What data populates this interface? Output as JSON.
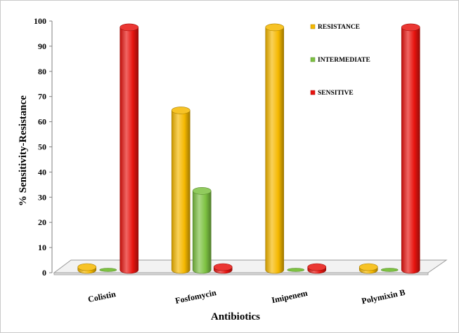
{
  "chart_data": {
    "type": "bar",
    "style": "3d-cylinder",
    "title": "",
    "xlabel": "Antibiotics",
    "ylabel": "% Sensitivity-Resistance",
    "ylim": [
      0,
      100
    ],
    "yticks": [
      0,
      10,
      20,
      30,
      40,
      50,
      60,
      70,
      80,
      90,
      100
    ],
    "categories": [
      "Colistin",
      "Fosfomycin",
      "Imipenem",
      "Polymixin B"
    ],
    "series": [
      {
        "name": "RESISTANCE",
        "color": "#f5b800",
        "values": [
          1.5,
          64.5,
          97.5,
          1.5
        ]
      },
      {
        "name": "INTERMEDIATE",
        "color": "#7dc242",
        "values": [
          0,
          32.5,
          0,
          0
        ]
      },
      {
        "name": "SENSITIVE",
        "color": "#e8140f",
        "values": [
          97.5,
          1.5,
          1.5,
          97.5
        ]
      }
    ],
    "legend_position": "top-right",
    "grid": false
  }
}
